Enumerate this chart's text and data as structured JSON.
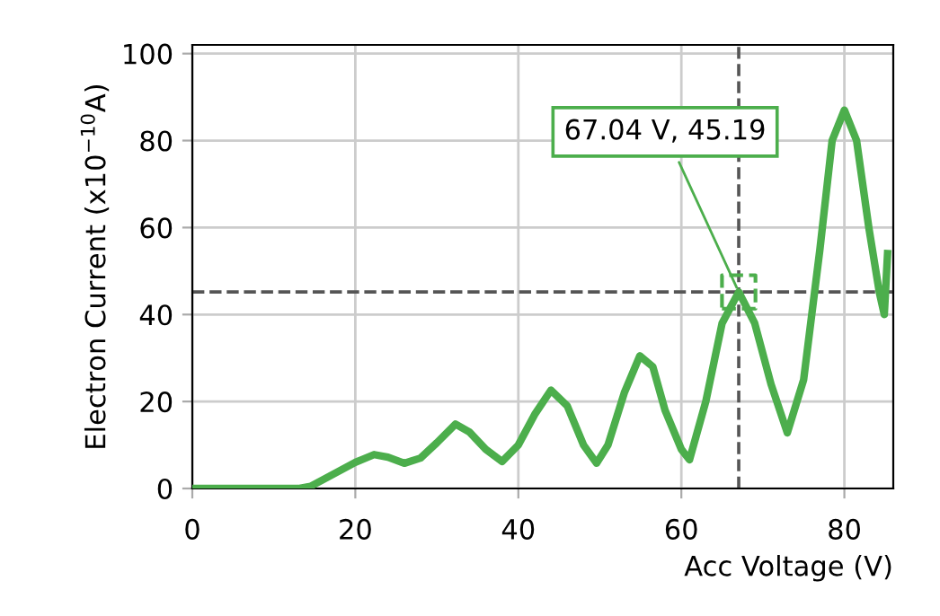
{
  "chart_data": {
    "type": "line",
    "xlabel": "Acc Voltage (V)",
    "ylabel": "Electron Current (x10$^{−10}$A)",
    "x": [
      0,
      5,
      10,
      13,
      14.5,
      16,
      18,
      20,
      22.3,
      24,
      26,
      28,
      30,
      32.3,
      34,
      36,
      38,
      40,
      42,
      44,
      46,
      48,
      49.6,
      51,
      53,
      54.9,
      56.5,
      58,
      60,
      61,
      63,
      65,
      67.04,
      69,
      71,
      73,
      75,
      77,
      78.5,
      80,
      81.5,
      83,
      84.3,
      84.9,
      85.3
    ],
    "series": [
      {
        "color": "#4cae4c",
        "values": [
          0,
          0,
          0,
          0,
          0.5,
          2,
          4,
          6,
          7.8,
          7.2,
          5.8,
          7,
          10.5,
          14.8,
          13,
          9,
          6.2,
          10,
          17,
          22.6,
          19,
          10,
          5.8,
          10,
          22,
          30.5,
          28,
          18,
          9,
          6.6,
          20,
          38,
          45.19,
          38,
          24,
          12.8,
          25,
          55,
          80,
          87,
          80,
          60,
          45,
          40,
          54
        ]
      }
    ],
    "xlim": [
      0,
      86
    ],
    "xticks": [
      0,
      20,
      40,
      60,
      80
    ],
    "ylim": [
      0,
      102
    ],
    "yticks": [
      0,
      20,
      40,
      60,
      80,
      100
    ],
    "grid": true,
    "line_style": "solid",
    "ref_lines": [
      {
        "axis": "x",
        "value": 67.04,
        "color": "#555555",
        "line_style": "dashed"
      },
      {
        "axis": "y",
        "value": 45.19,
        "color": "#555555",
        "line_style": "dashed"
      }
    ],
    "annotations": [
      {
        "text": "67.04 V, 45.19",
        "x": 67.04,
        "y": 45.19
      }
    ]
  }
}
